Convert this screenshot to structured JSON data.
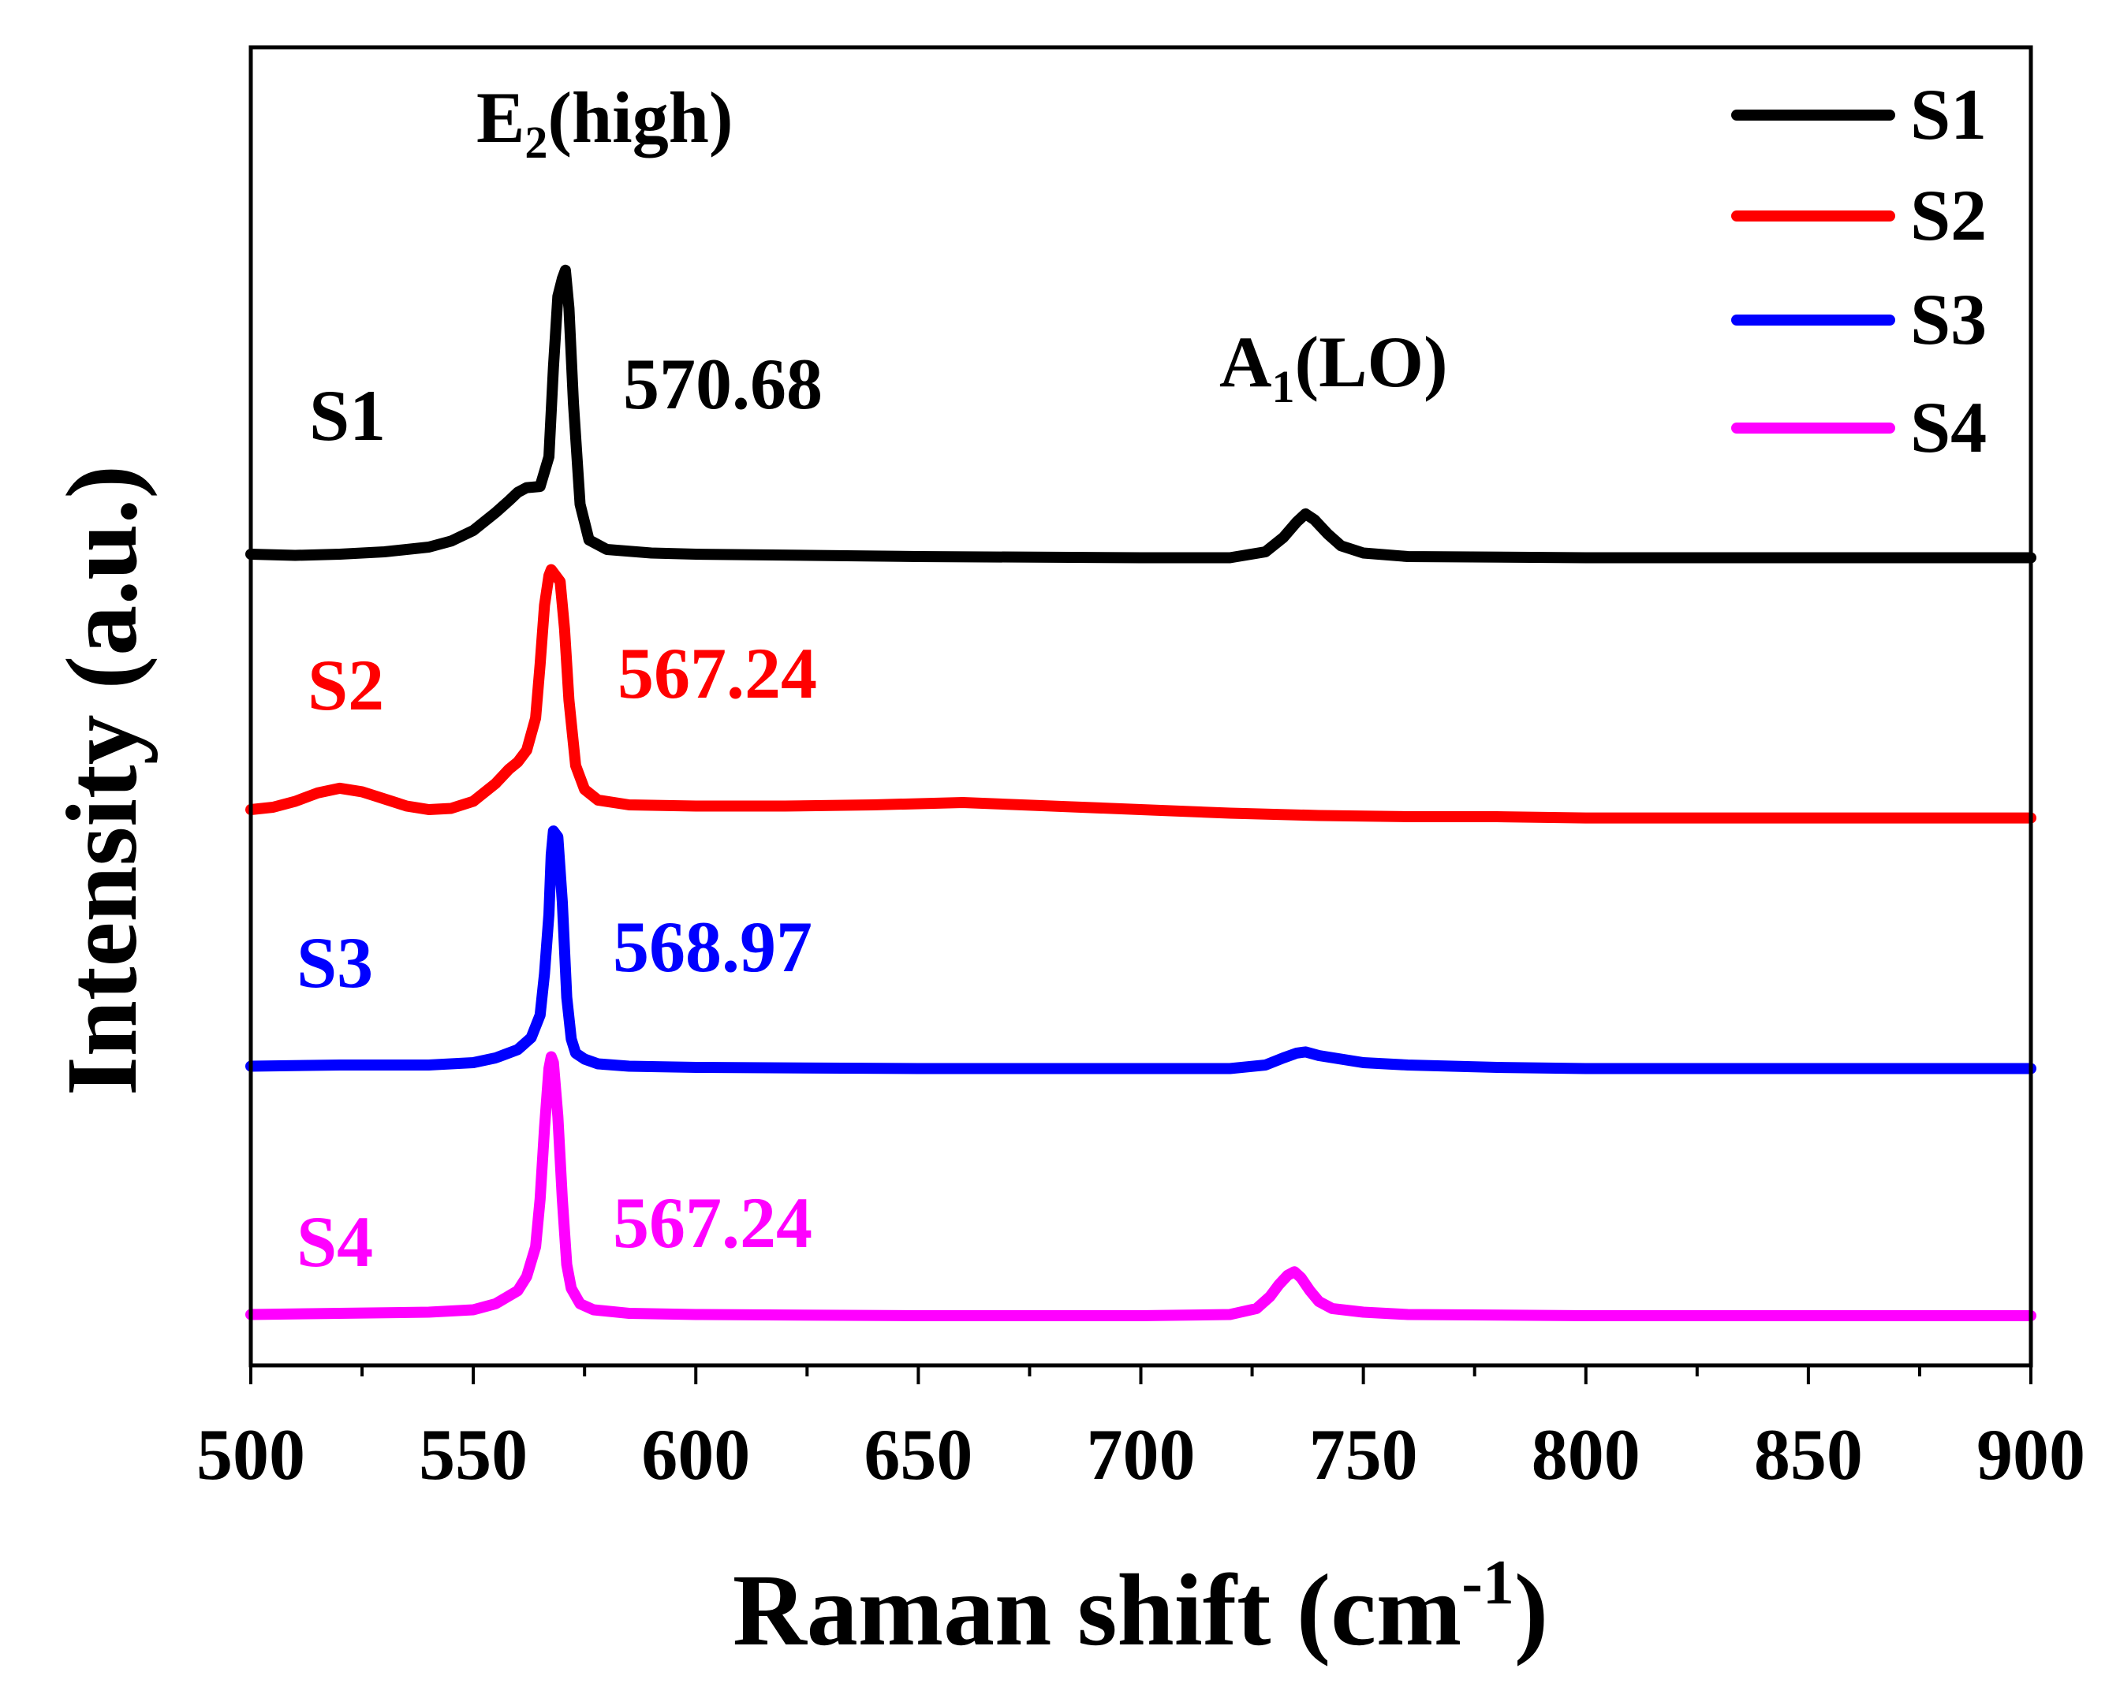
{
  "chart_data": {
    "type": "line",
    "title": "",
    "xlabel": {
      "main": "Raman shift (cm",
      "sup": "-1",
      "close": ")"
    },
    "ylabel": "Intensity (a.u.)",
    "xlim": [
      500,
      900
    ],
    "ylim": [
      0,
      100
    ],
    "x_ticks": [
      500,
      550,
      600,
      650,
      700,
      750,
      800,
      850,
      900
    ],
    "x_tick_labels": [
      "500",
      "550",
      "600",
      "650",
      "700",
      "750",
      "800",
      "850",
      "900"
    ],
    "y_ticks_shown": false,
    "grid": false,
    "legend_position": "top-right",
    "legend": [
      "S1",
      "S2",
      "S3",
      "S4"
    ],
    "colors": {
      "S1": "#000000",
      "S2": "#ff0000",
      "S3": "#0000ff",
      "S4": "#ff00ff"
    },
    "annotations": {
      "e2_mode": {
        "base": "E",
        "sub": "2",
        "rest": "(high)"
      },
      "a1_mode": {
        "base": "A",
        "sub": "1",
        "rest": "(LO)"
      }
    },
    "series": [
      {
        "name": "S1",
        "label": "S1",
        "peak_label": "570.68",
        "color": "#000000",
        "x": [
          500,
          510,
          520,
          530,
          540,
          545,
          550,
          555,
          558,
          560,
          562,
          565,
          567,
          568,
          569,
          570,
          570.7,
          571.5,
          572.5,
          574,
          576,
          580,
          590,
          600,
          650,
          700,
          720,
          728,
          732,
          735,
          737,
          739,
          742,
          745,
          750,
          760,
          800,
          850,
          900
        ],
        "y": [
          64.3,
          64.2,
          64.3,
          64.5,
          64.9,
          65.4,
          66.3,
          67.8,
          68.8,
          69.5,
          69.9,
          70.0,
          72.5,
          80.0,
          86.0,
          87.5,
          88.2,
          85.0,
          77.0,
          68.5,
          65.5,
          64.7,
          64.4,
          64.3,
          64.1,
          64.0,
          64.0,
          64.5,
          65.7,
          67.0,
          67.7,
          67.2,
          66.0,
          65.0,
          64.4,
          64.1,
          64.0,
          64.0,
          64.0
        ]
      },
      {
        "name": "S2",
        "label": "S2",
        "peak_label": "567.24",
        "color": "#ff0000",
        "x": [
          500,
          505,
          510,
          515,
          520,
          525,
          530,
          535,
          540,
          545,
          550,
          555,
          558,
          560,
          562,
          564,
          565,
          566,
          567,
          567.5,
          568.5,
          569.5,
          570.5,
          571.5,
          573,
          575,
          578,
          585,
          600,
          620,
          640,
          660,
          680,
          700,
          720,
          740,
          760,
          780,
          800,
          850,
          900
        ],
        "y": [
          42.8,
          43.0,
          43.5,
          44.2,
          44.6,
          44.3,
          43.7,
          43.1,
          42.8,
          42.9,
          43.5,
          45.0,
          46.2,
          46.8,
          47.8,
          50.5,
          55.0,
          60.0,
          62.5,
          63.0,
          62.5,
          62.0,
          58.0,
          52.0,
          46.5,
          44.5,
          43.6,
          43.2,
          43.1,
          43.1,
          43.2,
          43.4,
          43.1,
          42.8,
          42.5,
          42.3,
          42.2,
          42.2,
          42.1,
          42.1,
          42.1
        ]
      },
      {
        "name": "S3",
        "label": "S3",
        "peak_label": "568.97",
        "color": "#0000ff",
        "x": [
          500,
          520,
          540,
          550,
          555,
          560,
          563,
          565,
          566,
          567,
          567.5,
          568,
          569,
          570,
          571,
          572,
          573,
          575,
          578,
          585,
          600,
          650,
          700,
          720,
          728,
          732,
          735,
          737,
          740,
          745,
          750,
          760,
          780,
          800,
          850,
          900
        ],
        "y": [
          21.2,
          21.3,
          21.3,
          21.5,
          21.9,
          22.6,
          23.6,
          25.5,
          29.0,
          34.0,
          39.0,
          41.0,
          40.5,
          35.0,
          27.0,
          23.5,
          22.3,
          21.8,
          21.4,
          21.2,
          21.1,
          21.0,
          21.0,
          21.0,
          21.3,
          21.9,
          22.3,
          22.4,
          22.1,
          21.8,
          21.5,
          21.3,
          21.1,
          21.0,
          21.0,
          21.0
        ]
      },
      {
        "name": "S4",
        "label": "S4",
        "peak_label": "567.24",
        "color": "#ff00ff",
        "x": [
          500,
          520,
          540,
          550,
          555,
          560,
          562,
          564,
          565,
          566,
          567,
          567.5,
          568,
          569,
          570,
          571,
          572,
          574,
          577,
          585,
          600,
          650,
          700,
          720,
          726,
          729,
          731,
          733,
          734.5,
          736,
          738,
          740,
          743,
          750,
          760,
          800,
          850,
          900
        ],
        "y": [
          0.3,
          0.4,
          0.5,
          0.7,
          1.2,
          2.3,
          3.5,
          6.0,
          10.0,
          16.0,
          21.0,
          22.0,
          21.5,
          17.0,
          10.0,
          4.5,
          2.5,
          1.2,
          0.7,
          0.4,
          0.3,
          0.2,
          0.2,
          0.3,
          0.8,
          1.8,
          2.8,
          3.6,
          3.9,
          3.4,
          2.3,
          1.4,
          0.8,
          0.5,
          0.3,
          0.2,
          0.2,
          0.2
        ]
      }
    ]
  }
}
